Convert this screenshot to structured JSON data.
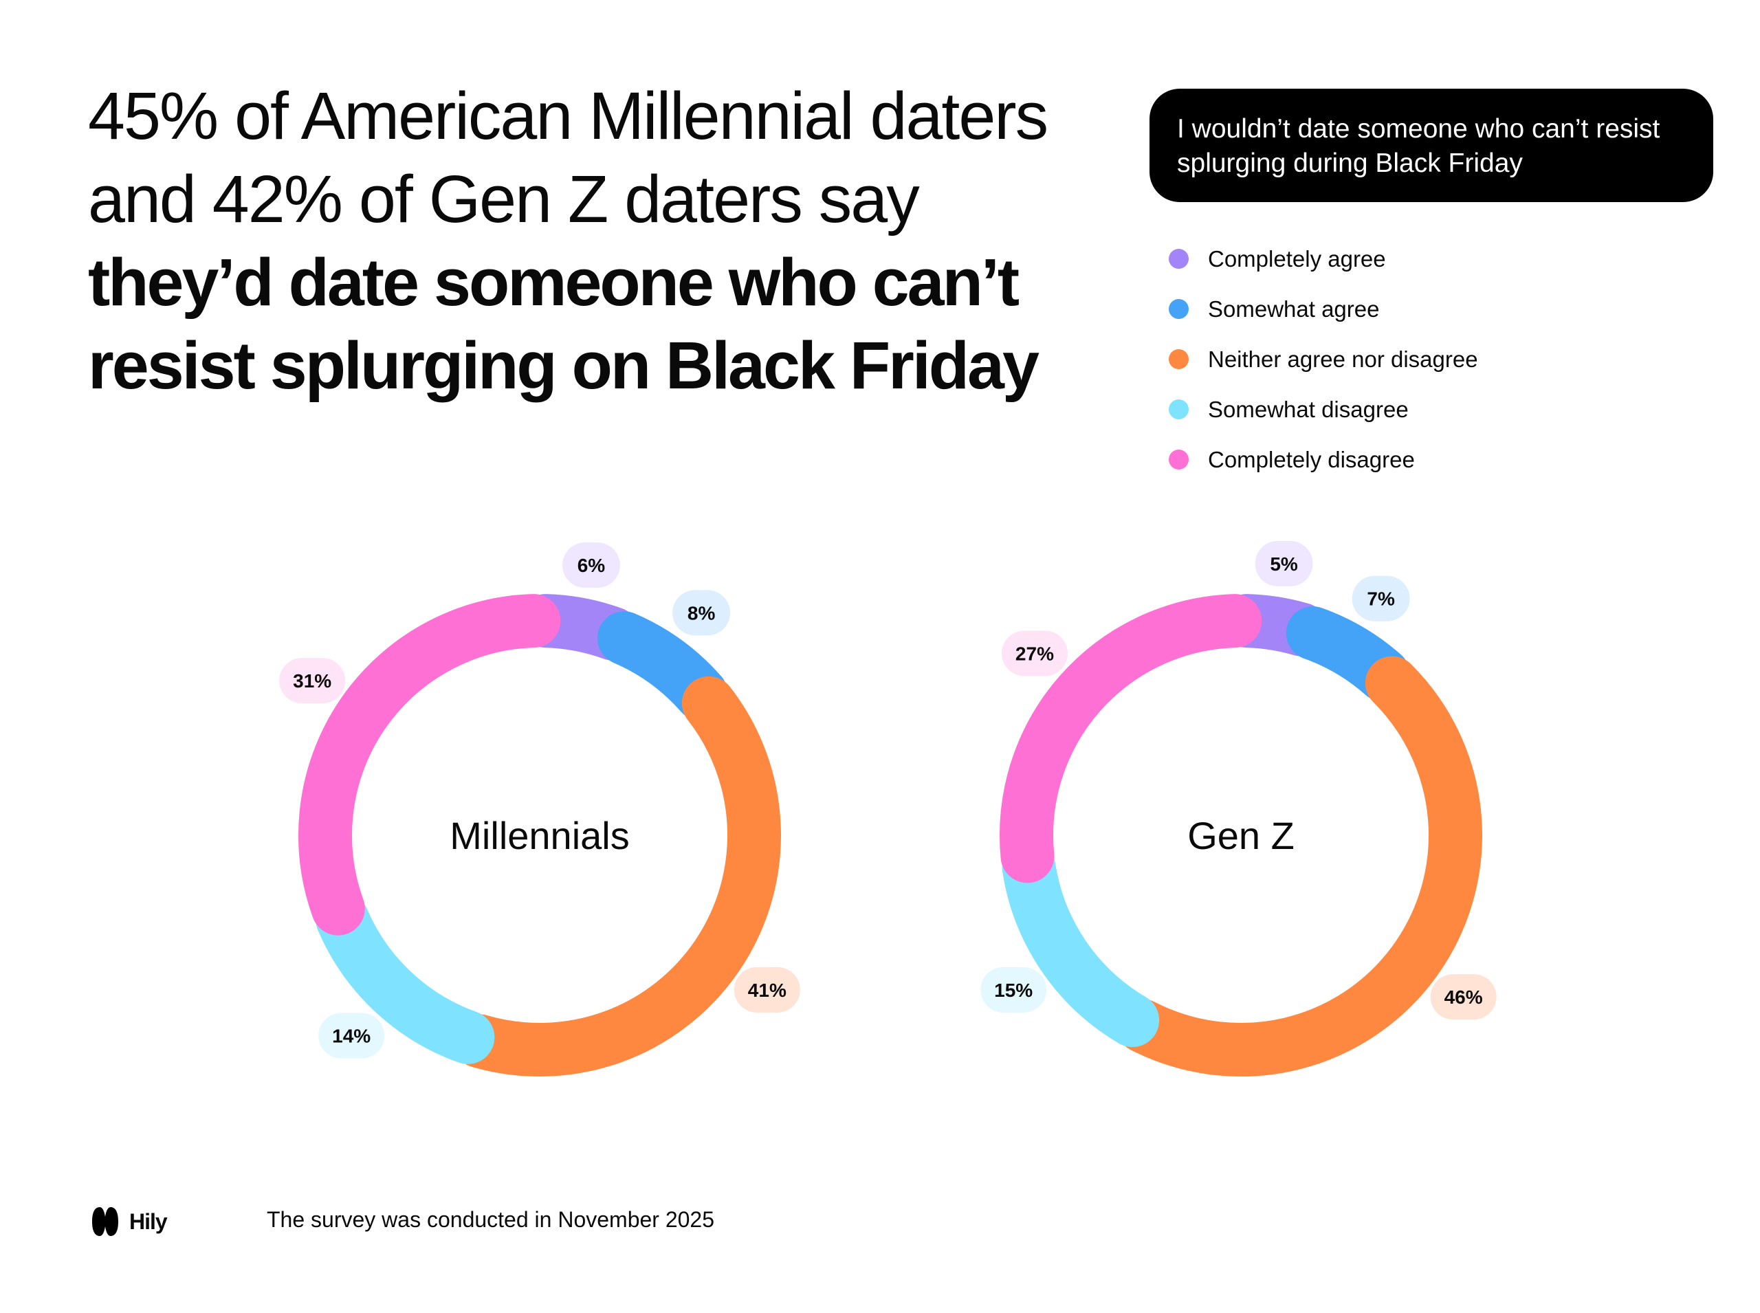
{
  "headline": {
    "normal": "45% of American Millennial daters and 42% of Gen Z daters say ",
    "bold": "they’d date someone who can’t resist splurging on Black Friday"
  },
  "question": "I wouldn’t date someone who can’t resist splurging during Black Friday",
  "legend": [
    {
      "label": "Completely agree",
      "color": "#A385F7"
    },
    {
      "label": "Somewhat agree",
      "color": "#45A3F7"
    },
    {
      "label": "Neither agree nor disagree",
      "color": "#FF8840"
    },
    {
      "label": "Somewhat disagree",
      "color": "#7FE3FF"
    },
    {
      "label": "Completely disagree",
      "color": "#FF70D4"
    }
  ],
  "chart_data": [
    {
      "type": "pie",
      "title": "Millennials",
      "categories": [
        "Completely agree",
        "Somewhat agree",
        "Neither agree nor disagree",
        "Somewhat disagree",
        "Completely disagree"
      ],
      "values": [
        6,
        8,
        41,
        14,
        31
      ],
      "labels": [
        "6%",
        "8%",
        "41%",
        "14%",
        "31%"
      ]
    },
    {
      "type": "pie",
      "title": "Gen Z",
      "categories": [
        "Completely agree",
        "Somewhat agree",
        "Neither agree nor disagree",
        "Somewhat disagree",
        "Completely disagree"
      ],
      "values": [
        5,
        7,
        46,
        15,
        27
      ],
      "labels": [
        "5%",
        "7%",
        "46%",
        "15%",
        "27%"
      ]
    }
  ],
  "label_backgrounds": [
    "#EEE7FF",
    "#DDEEFF",
    "#FFE3D5",
    "#E3F8FF",
    "#FFE3F6"
  ],
  "footer": {
    "brand": "Hily",
    "note": "The survey was conducted in November 2025"
  }
}
